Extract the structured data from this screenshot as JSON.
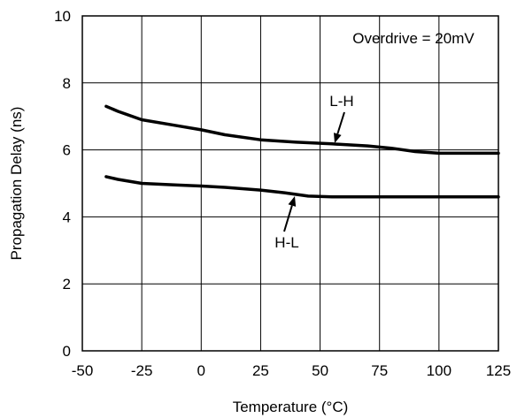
{
  "chart_data": {
    "type": "line",
    "title": "",
    "xlabel": "Temperature (°C)",
    "ylabel": "Propagation Delay (ns)",
    "xlim": [
      -50,
      125
    ],
    "ylim": [
      0,
      10
    ],
    "x_ticks": [
      -50,
      -25,
      0,
      25,
      50,
      75,
      100,
      125
    ],
    "y_ticks": [
      0,
      2,
      4,
      6,
      8,
      10
    ],
    "grid": true,
    "legend": "none",
    "annotations": {
      "condition": "Overdrive = 20mV",
      "lh_label": "L-H",
      "hl_label": "H-L"
    },
    "series": [
      {
        "name": "L-H",
        "x": [
          -40,
          -35,
          -25,
          -10,
          0,
          10,
          25,
          40,
          55,
          70,
          80,
          90,
          100,
          110,
          125
        ],
        "y": [
          7.3,
          7.15,
          6.9,
          6.72,
          6.6,
          6.45,
          6.3,
          6.23,
          6.18,
          6.12,
          6.05,
          5.95,
          5.9,
          5.9,
          5.9
        ]
      },
      {
        "name": "H-L",
        "x": [
          -40,
          -35,
          -25,
          -10,
          0,
          10,
          25,
          35,
          45,
          55,
          70,
          85,
          100,
          125
        ],
        "y": [
          5.2,
          5.12,
          5.0,
          4.95,
          4.92,
          4.88,
          4.8,
          4.72,
          4.62,
          4.6,
          4.6,
          4.6,
          4.6,
          4.6
        ]
      }
    ]
  }
}
